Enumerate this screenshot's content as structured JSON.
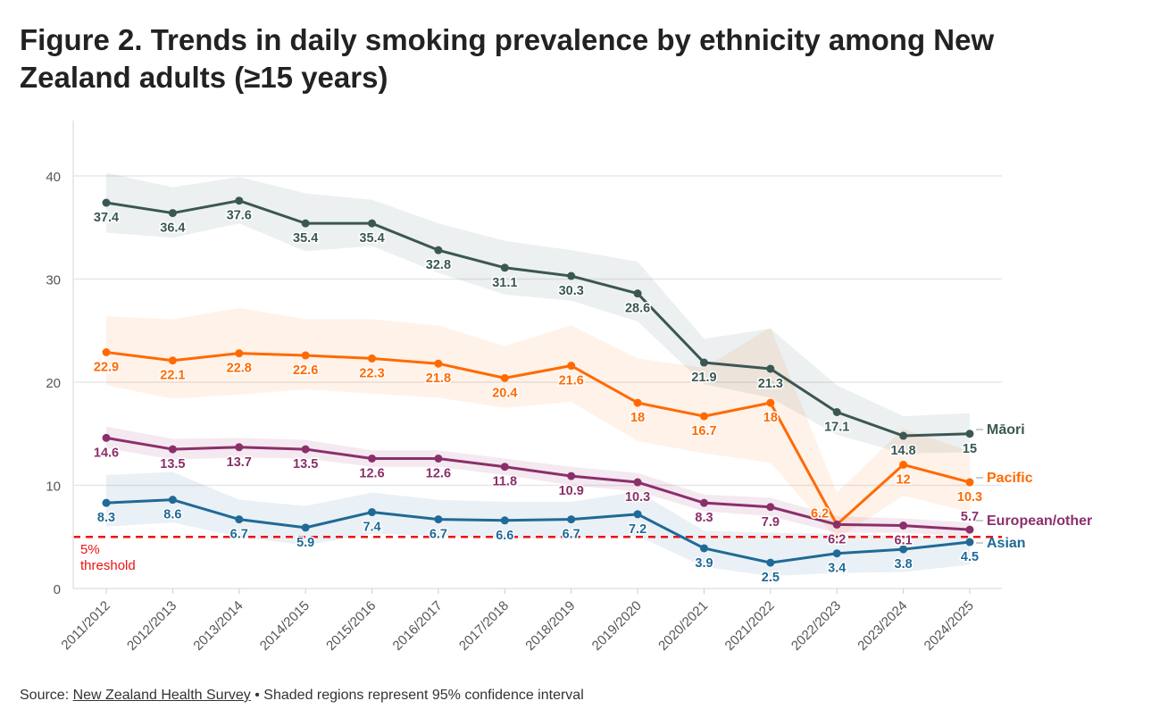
{
  "title": "Figure 2. Trends in daily smoking prevalence by ethnicity among New Zealand adults (≥15 years)",
  "source": {
    "prefix": "Source: ",
    "link_text": "New Zealand Health Survey",
    "suffix": " • Shaded regions represent 95% confidence interval"
  },
  "chart_data": {
    "type": "line",
    "title": "Figure 2. Trends in daily smoking prevalence by ethnicity among New Zealand adults (≥15 years)",
    "xlabel": "",
    "ylabel": "",
    "ylim": [
      0,
      45
    ],
    "yticks": [
      0,
      10,
      20,
      30,
      40
    ],
    "grid": true,
    "legend": "direct labels at line ends (right)",
    "categories": [
      "2011/2012",
      "2012/2013",
      "2013/2014",
      "2014/2015",
      "2015/2016",
      "2016/2017",
      "2017/2018",
      "2018/2019",
      "2019/2020",
      "2020/2021",
      "2021/2022",
      "2022/2023",
      "2023/2024",
      "2024/2025"
    ],
    "series": [
      {
        "name": "Māori",
        "color": "#3b5753",
        "band_color": "#e9eeee",
        "values": [
          37.4,
          36.4,
          37.6,
          35.4,
          35.4,
          32.8,
          31.1,
          30.3,
          28.6,
          21.9,
          21.3,
          17.1,
          14.8,
          15
        ],
        "ci_upper": [
          40.3,
          38.9,
          39.9,
          38.3,
          37.7,
          35.4,
          33.7,
          32.8,
          31.7,
          24.2,
          25.2,
          19.7,
          16.7,
          17.0
        ],
        "ci_lower": [
          34.5,
          34.0,
          35.4,
          32.7,
          33.2,
          30.6,
          28.5,
          27.9,
          25.9,
          19.8,
          18.5,
          14.9,
          13.1,
          13.2
        ]
      },
      {
        "name": "Pacific",
        "color": "#ff6a00",
        "band_color": "#fff0e5",
        "values": [
          22.9,
          22.1,
          22.8,
          22.6,
          22.3,
          21.8,
          20.4,
          21.6,
          18,
          16.7,
          18,
          6.2,
          12,
          10.3
        ],
        "ci_upper": [
          26.4,
          26.1,
          27.2,
          26.1,
          26.1,
          25.5,
          23.5,
          25.5,
          22.3,
          21.4,
          25.3,
          9.3,
          15.5,
          13.3
        ],
        "ci_lower": [
          19.7,
          18.4,
          18.8,
          19.3,
          18.9,
          18.5,
          17.5,
          18.1,
          14.3,
          13.1,
          12.2,
          4.8,
          9.0,
          7.4
        ]
      },
      {
        "name": "European/other",
        "color": "#8b2f6b",
        "band_color": "#f3e6ee",
        "values": [
          14.6,
          13.5,
          13.7,
          13.5,
          12.6,
          12.6,
          11.8,
          10.9,
          10.3,
          8.3,
          7.9,
          6.2,
          6.1,
          5.7
        ],
        "ci_upper": [
          15.7,
          14.5,
          14.6,
          14.4,
          13.4,
          13.4,
          12.6,
          11.8,
          11.2,
          9.1,
          8.8,
          7.0,
          6.8,
          6.4
        ],
        "ci_lower": [
          13.6,
          12.5,
          12.7,
          12.6,
          11.8,
          11.8,
          11.0,
          10.0,
          9.4,
          7.5,
          7.0,
          5.4,
          5.4,
          5.0
        ]
      },
      {
        "name": "Asian",
        "color": "#1f6a96",
        "band_color": "#e6eef5",
        "values": [
          8.3,
          8.6,
          6.7,
          5.9,
          7.4,
          6.7,
          6.6,
          6.7,
          7.2,
          3.9,
          2.5,
          3.4,
          3.8,
          4.5
        ],
        "ci_upper": [
          11.0,
          11.3,
          8.6,
          8.0,
          9.3,
          8.6,
          8.4,
          8.4,
          9.4,
          5.6,
          5.4,
          5.3,
          5.1,
          5.1
        ],
        "ci_lower": [
          6.0,
          6.4,
          5.0,
          4.2,
          5.3,
          5.1,
          4.8,
          4.9,
          5.1,
          2.1,
          1.2,
          1.5,
          1.6,
          2.3
        ]
      }
    ],
    "annotations": [
      {
        "text_lines": [
          "5%",
          "threshold"
        ],
        "type": "horizontal-line",
        "y": 5,
        "color": "#ee1111",
        "style": "dashed"
      }
    ]
  }
}
